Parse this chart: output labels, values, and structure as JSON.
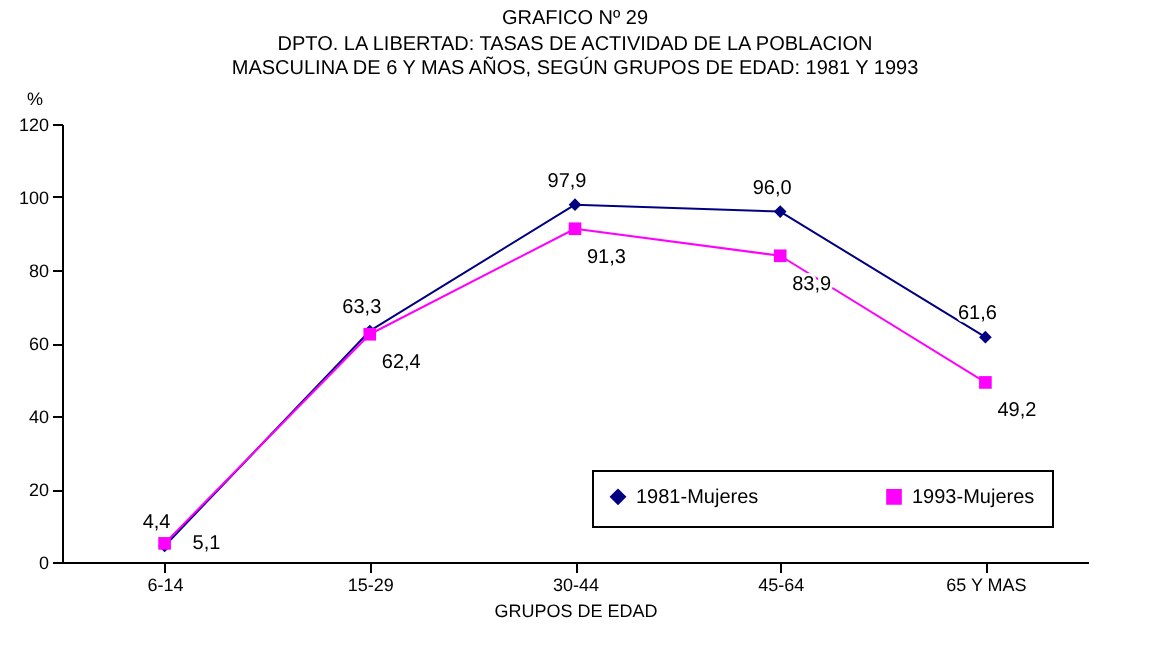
{
  "chart_data": {
    "type": "line",
    "title": "GRAFICO Nº 29",
    "subtitle": "DPTO. LA LIBERTAD: TASAS DE ACTIVIDAD DE LA POBLACION\nMASCULINA DE 6 Y MAS AÑOS, SEGÚN GRUPOS DE EDAD: 1981 Y 1993",
    "xlabel": "GRUPOS DE EDAD",
    "ylabel": "%",
    "categories": [
      "6-14",
      "15-29",
      "30-44",
      "45-64",
      "65 Y MAS"
    ],
    "series": [
      {
        "name": "1981-Mujeres",
        "color": "#000080",
        "marker": "diamond",
        "values": [
          4.4,
          63.3,
          97.9,
          96.0,
          61.6
        ],
        "value_labels": [
          "4,4",
          "63,3",
          "97,9",
          "96,0",
          "61,6"
        ]
      },
      {
        "name": "1993-Mujeres",
        "color": "#ff00ff",
        "marker": "square",
        "values": [
          5.1,
          62.4,
          91.3,
          83.9,
          49.2
        ],
        "value_labels": [
          "5,1",
          "62,4",
          "91,3",
          "83,9",
          "49,2"
        ]
      }
    ],
    "ylim": [
      0,
      120
    ],
    "yticks": [
      0,
      20,
      40,
      60,
      80,
      100,
      120
    ],
    "grid": false,
    "legend": "bottom right"
  }
}
